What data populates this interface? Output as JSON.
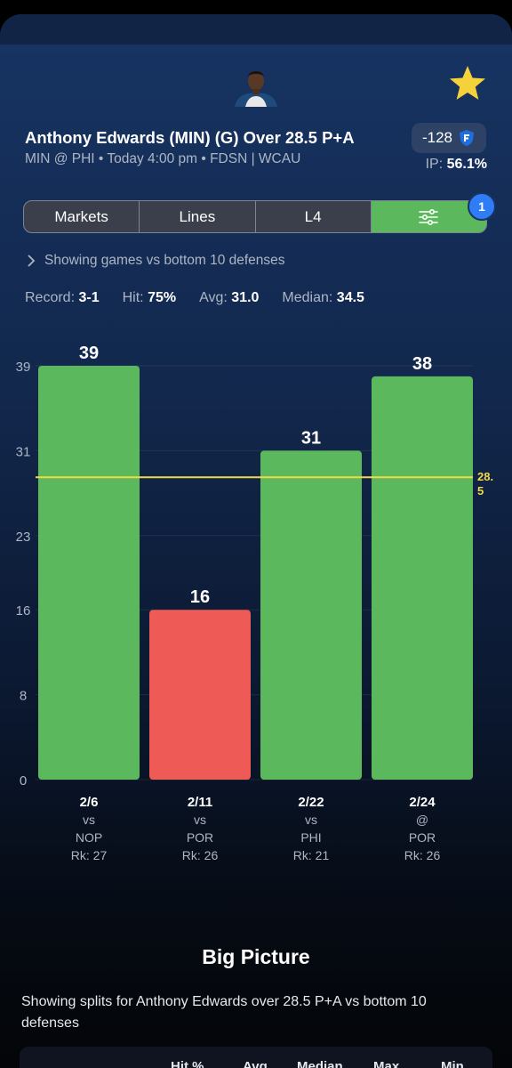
{
  "header": {
    "title": "Anthony Edwards (MIN) (G) Over 28.5 P+A",
    "subtitle": "MIN @ PHI • Today 4:00 pm • FDSN | WCAU",
    "odds": "-128",
    "ip_label": "IP:",
    "ip_value": "56.1%"
  },
  "tabs": [
    "Markets",
    "Lines",
    "L4"
  ],
  "filter_badge": "1",
  "filter_note": "Showing games vs bottom 10 defenses",
  "stats": [
    {
      "label": "Record:",
      "value": "3-1"
    },
    {
      "label": "Hit:",
      "value": "75%"
    },
    {
      "label": "Avg:",
      "value": "31.0"
    },
    {
      "label": "Median:",
      "value": "34.5"
    }
  ],
  "chart_data": {
    "type": "bar",
    "ylim": [
      0,
      39
    ],
    "yticks": [
      "39",
      "31",
      "23",
      "16",
      "8",
      "0"
    ],
    "line": {
      "value": 28.5,
      "label_lines": [
        "28.",
        "5"
      ]
    },
    "categories": [
      "2/6",
      "2/11",
      "2/22",
      "2/24"
    ],
    "values": [
      39,
      16,
      31,
      38
    ],
    "value_labels": [
      "39",
      "16",
      "31",
      "38"
    ],
    "venue": [
      "vs",
      "vs",
      "vs",
      "@"
    ],
    "opponents": [
      "NOP",
      "POR",
      "PHI",
      "POR"
    ],
    "ranks": [
      "Rk: 27",
      "Rk: 26",
      "Rk: 21",
      "Rk: 26"
    ],
    "colors": {
      "hit": "#5cb85c",
      "miss": "#ee5a55",
      "line": "#f2d94a"
    }
  },
  "big_picture": {
    "title": "Big Picture",
    "description": "Showing splits for Anthony Edwards over 28.5 P+A vs bottom 10 defenses",
    "columns": [
      "Hit %",
      "Avg",
      "Median",
      "Max",
      "Min"
    ]
  }
}
